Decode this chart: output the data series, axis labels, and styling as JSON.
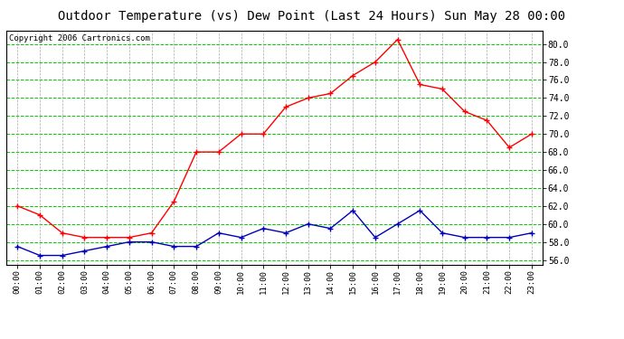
{
  "title": "Outdoor Temperature (vs) Dew Point (Last 24 Hours) Sun May 28 00:00",
  "copyright": "Copyright 2006 Cartronics.com",
  "hours": [
    "00:00",
    "01:00",
    "02:00",
    "03:00",
    "04:00",
    "05:00",
    "06:00",
    "07:00",
    "08:00",
    "09:00",
    "10:00",
    "11:00",
    "12:00",
    "13:00",
    "14:00",
    "15:00",
    "16:00",
    "17:00",
    "18:00",
    "19:00",
    "20:00",
    "21:00",
    "22:00",
    "23:00"
  ],
  "temp": [
    62.0,
    61.0,
    59.0,
    58.5,
    58.5,
    58.5,
    59.0,
    62.5,
    68.0,
    68.0,
    70.0,
    70.0,
    73.0,
    74.0,
    74.5,
    76.5,
    78.0,
    80.5,
    75.5,
    75.0,
    72.5,
    71.5,
    68.5,
    70.0
  ],
  "dew": [
    57.5,
    56.5,
    56.5,
    57.0,
    57.5,
    58.0,
    58.0,
    57.5,
    57.5,
    59.0,
    58.5,
    59.5,
    59.0,
    60.0,
    59.5,
    61.5,
    58.5,
    60.0,
    61.5,
    59.0,
    58.5,
    58.5,
    58.5,
    59.0
  ],
  "temp_color": "#ff0000",
  "dew_color": "#0000bb",
  "bg_color": "#ffffff",
  "plot_bg": "#ffffff",
  "grid_h_color": "#00cc00",
  "grid_v_color": "#aaaaaa",
  "ylim": [
    55.5,
    81.5
  ],
  "yticks": [
    56.0,
    58.0,
    60.0,
    62.0,
    64.0,
    66.0,
    68.0,
    70.0,
    72.0,
    74.0,
    76.0,
    78.0,
    80.0
  ],
  "title_fontsize": 10,
  "copyright_fontsize": 6.5
}
